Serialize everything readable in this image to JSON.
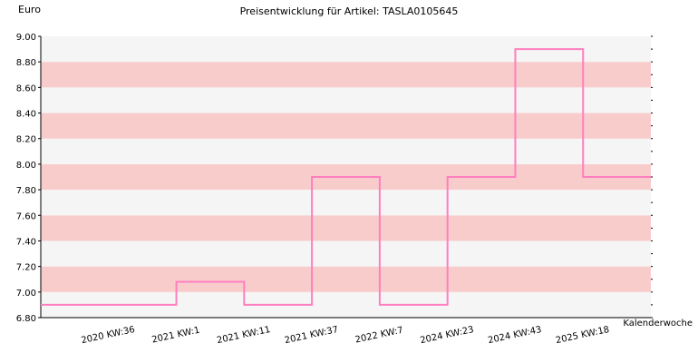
{
  "chart_data": {
    "type": "line",
    "step": true,
    "title": "Preisentwicklung für Artikel: TASLA0105645",
    "ylabel": "Euro",
    "xlabel": "Kalenderwoche",
    "ylim": [
      6.8,
      9.0
    ],
    "yticks": [
      "6.80",
      "7.00",
      "7.20",
      "7.40",
      "7.60",
      "7.80",
      "8.00",
      "8.20",
      "8.40",
      "8.60",
      "8.80",
      "9.00"
    ],
    "categories": [
      "2020 KW:36",
      "2021 KW:1",
      "2021 KW:11",
      "2021 KW:37",
      "2022 KW:7",
      "2024 KW:23",
      "2024 KW:43",
      "2025 KW:18"
    ],
    "series": [
      {
        "values": [
          6.9,
          7.08,
          6.9,
          7.9,
          6.9,
          7.9,
          8.9,
          7.9
        ]
      }
    ],
    "grid": true,
    "colors": {
      "line": "#ff7fbf",
      "band": "#f9cccc",
      "band_alt": "#f5f5f5",
      "axis": "#000000"
    }
  }
}
